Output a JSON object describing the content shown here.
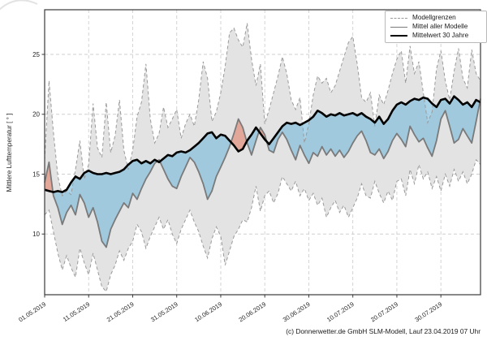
{
  "caption": "(c) Donnerwetter.de GmbH SLM-Modell, Lauf 23.04.2019 07 Uhr",
  "chart_data": {
    "type": "line",
    "title": "",
    "xlabel": "",
    "ylabel": "Mittlere Lufttemperatur [ ° ]",
    "ylim": [
      4.9,
      28.7
    ],
    "yticks": [
      10,
      15,
      20,
      25
    ],
    "x_tick_labels": [
      "01.05.2019",
      "11.05.2019",
      "21.05.2019",
      "31.05.2019",
      "10.06.2019",
      "20.06.2019",
      "30.06.2019",
      "10.07.2019",
      "20.07.2019",
      "30.07.2019"
    ],
    "x_tick_days": [
      0,
      10,
      20,
      30,
      40,
      50,
      60,
      70,
      80,
      90
    ],
    "days_total": 99,
    "grid": "dashed-both-axes",
    "legend_position": "top-right",
    "legend_entries": [
      "Modellgrenzen",
      "Mittel aller Modelle",
      "Mittelwert 30 Jahre"
    ],
    "colors": {
      "band_fill": "#e3e3e3",
      "bound_edge": "#9a9a9a",
      "mean_line": "#7a7a7a",
      "climate_line": "#000000",
      "below_normal_fill": "rgba(125,188,220,0.65)",
      "above_normal_fill": "rgba(225,118,92,0.55)",
      "grid": "#cfcfcf",
      "frame": "#3a3a3a",
      "text": "#262626"
    },
    "series": [
      {
        "name": "Modellgrenzen obere Grenze",
        "style": "dashed",
        "values": [
          16.2,
          22.8,
          18.5,
          14.8,
          13.2,
          13.6,
          13.3,
          15.4,
          17.8,
          14.6,
          15.8,
          20.9,
          17.2,
          16.4,
          21.0,
          16.8,
          18.2,
          21.2,
          17.0,
          15.4,
          17.0,
          19.8,
          21.0,
          24.2,
          19.6,
          17.6,
          18.4,
          20.6,
          18.9,
          19.6,
          20.4,
          18.0,
          19.2,
          20.0,
          19.0,
          21.2,
          24.4,
          23.0,
          19.4,
          20.2,
          21.8,
          24.0,
          26.8,
          27.2,
          26.2,
          25.6,
          27.6,
          24.6,
          22.4,
          24.2,
          19.2,
          20.4,
          21.8,
          23.2,
          24.8,
          23.4,
          21.2,
          20.4,
          21.4,
          17.6,
          19.2,
          21.6,
          23.2,
          22.6,
          23.0,
          21.8,
          22.4,
          23.6,
          24.8,
          26.0,
          26.5,
          24.2,
          21.4,
          21.0,
          21.8,
          19.0,
          21.6,
          20.8,
          22.0,
          23.4,
          24.6,
          25.3,
          22.6,
          25.7,
          23.4,
          24.4,
          21.8,
          19.3,
          20.2,
          23.8,
          25.3,
          22.8,
          21.2,
          23.6,
          25.5,
          23.0,
          22.2,
          25.4,
          23.4,
          22.8
        ]
      },
      {
        "name": "Modellgrenzen untere Grenze",
        "style": "dashed",
        "values": [
          11.6,
          12.0,
          10.2,
          8.4,
          7.0,
          8.2,
          7.2,
          6.4,
          8.8,
          7.6,
          6.6,
          8.4,
          7.0,
          5.6,
          5.2,
          6.6,
          7.4,
          8.6,
          7.8,
          8.8,
          9.4,
          10.8,
          10.2,
          8.8,
          9.8,
          10.6,
          11.4,
          10.4,
          11.2,
          10.0,
          9.2,
          10.4,
          11.2,
          12.0,
          11.0,
          10.2,
          9.0,
          8.0,
          9.6,
          10.6,
          9.8,
          7.4,
          8.6,
          9.8,
          10.4,
          11.2,
          11.0,
          12.2,
          14.0,
          11.9,
          13.2,
          13.6,
          12.6,
          13.4,
          14.8,
          14.2,
          13.6,
          14.4,
          13.2,
          13.8,
          12.8,
          13.4,
          12.4,
          13.0,
          11.4,
          12.2,
          12.8,
          11.8,
          12.4,
          11.4,
          12.2,
          13.0,
          14.2,
          13.2,
          13.0,
          14.4,
          13.4,
          12.6,
          13.6,
          12.8,
          14.4,
          14.6,
          13.2,
          15.4,
          14.2,
          15.8,
          14.6,
          15.2,
          13.8,
          14.8,
          13.6,
          15.0,
          14.0,
          15.4,
          14.4,
          15.2,
          14.2,
          15.0,
          16.2,
          15.8
        ]
      },
      {
        "name": "Mittel aller Modelle",
        "style": "solid-gray",
        "values": [
          14.3,
          16.0,
          13.2,
          12.2,
          10.8,
          11.8,
          12.4,
          11.6,
          13.3,
          12.6,
          11.4,
          12.2,
          11.0,
          9.4,
          8.9,
          10.4,
          11.2,
          11.9,
          12.6,
          12.2,
          13.4,
          12.9,
          13.8,
          14.6,
          15.2,
          15.9,
          16.2,
          15.4,
          14.6,
          14.0,
          13.8,
          14.8,
          15.6,
          16.4,
          16.0,
          15.2,
          14.2,
          12.9,
          13.6,
          14.8,
          15.6,
          16.4,
          17.3,
          18.4,
          19.6,
          18.9,
          17.6,
          16.6,
          17.8,
          18.9,
          18.3,
          17.0,
          16.8,
          17.9,
          18.5,
          17.9,
          17.0,
          16.2,
          17.4,
          16.6,
          15.9,
          16.8,
          16.5,
          17.3,
          16.6,
          17.1,
          16.5,
          17.0,
          16.4,
          16.9,
          17.6,
          18.2,
          18.6,
          17.8,
          16.8,
          16.6,
          17.1,
          16.3,
          16.9,
          17.8,
          18.4,
          17.9,
          17.3,
          19.0,
          18.3,
          17.7,
          18.0,
          17.2,
          16.5,
          17.8,
          19.6,
          20.3,
          19.0,
          17.6,
          17.9,
          18.8,
          18.2,
          17.6,
          19.4,
          21.3
        ]
      },
      {
        "name": "Mittelwert 30 Jahre",
        "style": "solid-black-thick",
        "values": [
          13.7,
          13.6,
          13.5,
          13.6,
          13.5,
          13.7,
          14.3,
          14.8,
          14.6,
          15.1,
          15.3,
          15.1,
          15.0,
          15.0,
          15.1,
          15.0,
          15.1,
          15.2,
          15.4,
          15.8,
          16.1,
          16.2,
          15.9,
          16.1,
          15.9,
          16.2,
          16.0,
          16.3,
          16.6,
          16.5,
          16.8,
          16.9,
          16.8,
          17.0,
          17.3,
          17.6,
          18.0,
          18.4,
          18.5,
          18.0,
          18.3,
          18.2,
          17.8,
          17.4,
          16.9,
          17.1,
          17.8,
          18.3,
          18.9,
          18.4,
          17.9,
          17.5,
          18.0,
          18.5,
          19.0,
          19.3,
          19.2,
          19.3,
          19.1,
          19.3,
          19.5,
          19.8,
          20.3,
          20.1,
          19.8,
          20.0,
          19.9,
          20.1,
          19.9,
          20.0,
          20.1,
          19.9,
          20.1,
          19.8,
          19.6,
          19.3,
          19.8,
          19.2,
          19.6,
          20.3,
          20.8,
          21.0,
          20.8,
          21.1,
          21.3,
          21.2,
          21.4,
          21.3,
          20.9,
          20.6,
          21.2,
          21.3,
          20.9,
          21.5,
          21.2,
          20.8,
          21.0,
          20.6,
          21.2,
          21.0
        ]
      }
    ]
  }
}
